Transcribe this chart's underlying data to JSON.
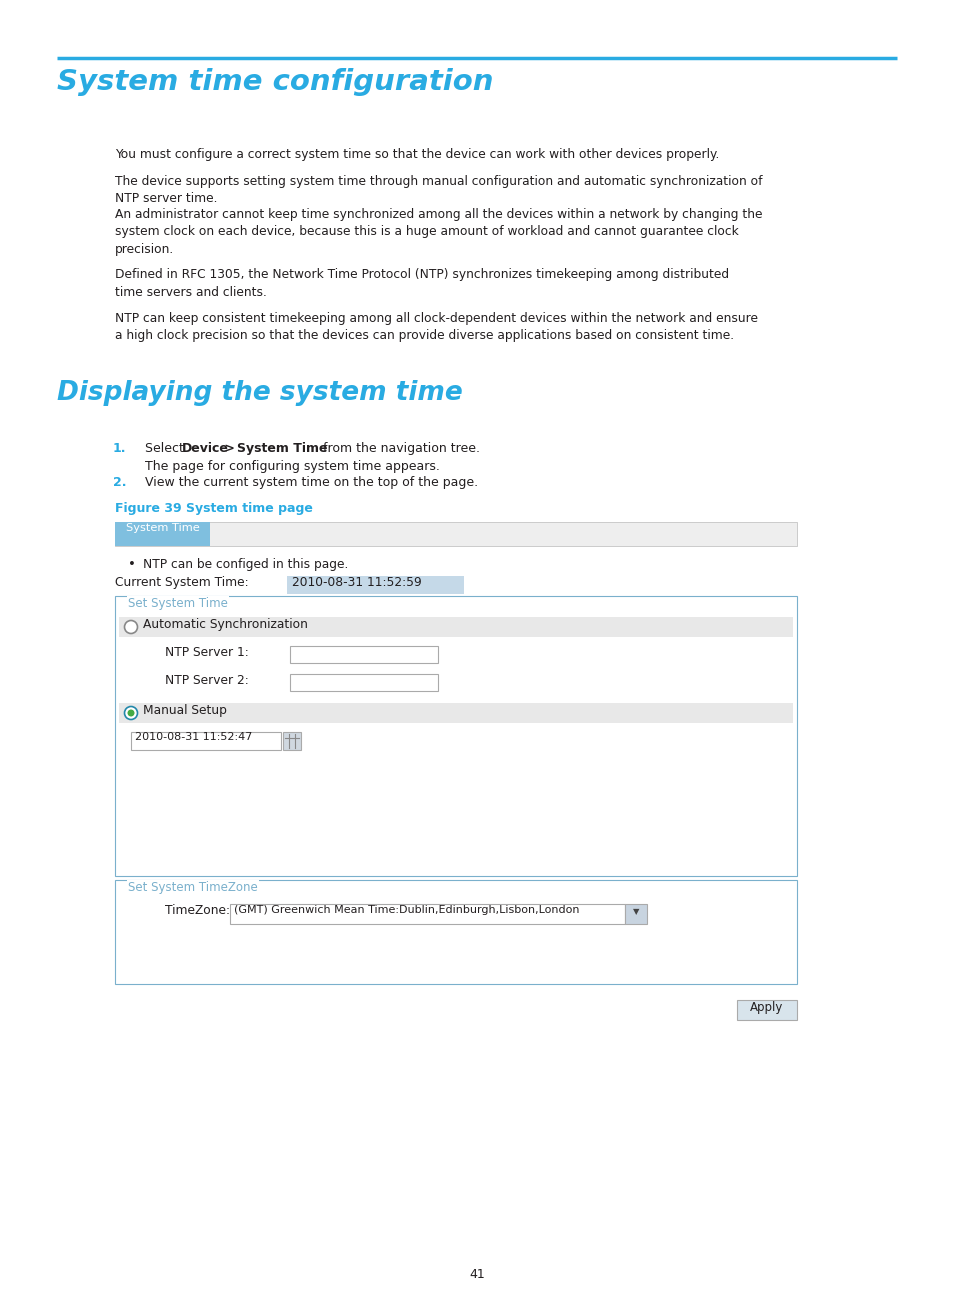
{
  "page_bg": "#ffffff",
  "header_line_color": "#29abe2",
  "title1": "System time configuration",
  "title1_color": "#29abe2",
  "title2": "Displaying the system time",
  "title2_color": "#29abe2",
  "body_text_color": "#231f20",
  "paragraphs": [
    "You must configure a correct system time so that the device can work with other devices properly.",
    "The device supports setting system time through manual configuration and automatic synchronization of\nNTP server time.",
    "An administrator cannot keep time synchronized among all the devices within a network by changing the\nsystem clock on each device, because this is a huge amount of workload and cannot guarantee clock\nprecision.",
    "Defined in RFC 1305, the Network Time Protocol (NTP) synchronizes timekeeping among distributed\ntime servers and clients.",
    "NTP can keep consistent timekeeping among all clock-dependent devices within the network and ensure\na high clock precision so that the devices can provide diverse applications based on consistent time."
  ],
  "step1_sub": "The page for configuring system time appears.",
  "step2_text": "View the current system time on the top of the page.",
  "figure_label": "Figure 39 System time page",
  "figure_label_color": "#29abe2",
  "tab_text": "System Time",
  "tab_bg": "#7fbfdf",
  "tab_bar_bg": "#eeeeee",
  "bullet_text": "NTP can be configed in this page.",
  "current_time_label": "Current System Time:",
  "current_time_value": "2010-08-31 11:52:59",
  "current_time_bg": "#c5d9e8",
  "section1_label": "Set System Time",
  "section1_border": "#7ab0cc",
  "radio1_text": "Automatic Synchronization",
  "ntp1_label": "NTP Server 1:",
  "ntp2_label": "NTP Server 2:",
  "radio2_text": "Manual Setup",
  "manual_time": "2010-08-31 11:52:47",
  "section2_label": "Set System TimeZone",
  "section2_border": "#7ab0cc",
  "timezone_label": "TimeZone:",
  "timezone_value": "(GMT) Greenwich Mean Time:Dublin,Edinburgh,Lisbon,London",
  "apply_text": "Apply",
  "apply_bg": "#d8e4ec",
  "page_number": "41"
}
